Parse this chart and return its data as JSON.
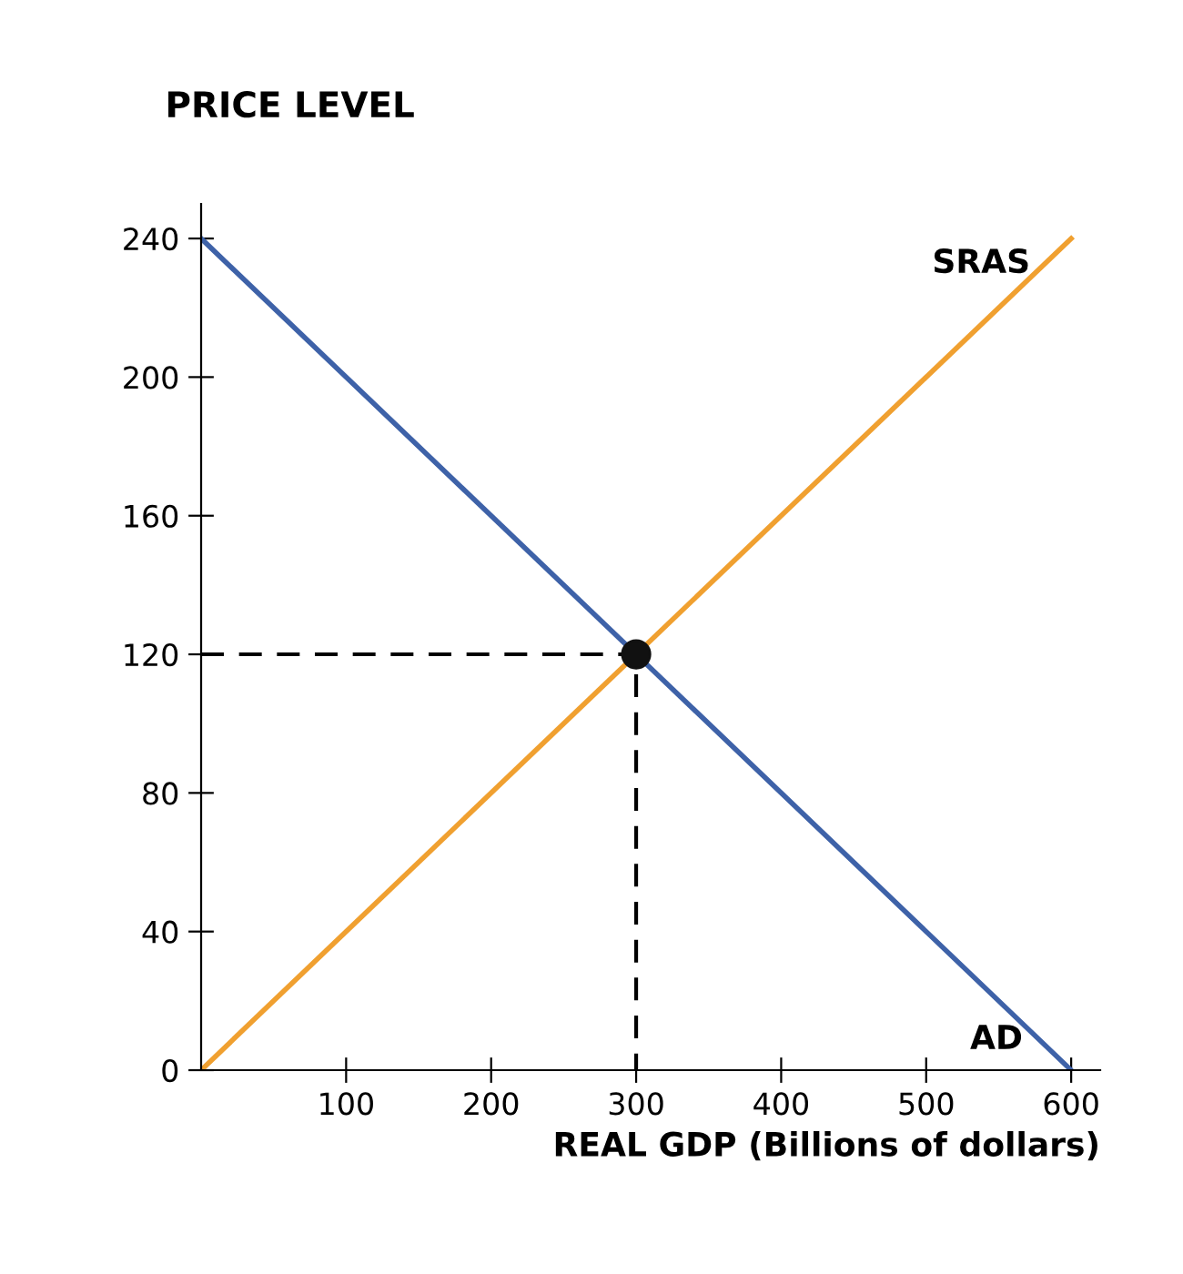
{
  "chart_data": {
    "type": "line",
    "ylabel": "PRICE LEVEL",
    "xlabel": "REAL GDP (Billions of dollars)",
    "xlim": [
      0,
      620
    ],
    "ylim": [
      0,
      250
    ],
    "xticks": [
      100,
      200,
      300,
      400,
      500,
      600
    ],
    "yticks": [
      0,
      40,
      80,
      120,
      160,
      200,
      240
    ],
    "grid": false,
    "legend": false,
    "marker": "none",
    "series": [
      {
        "name": "SRAS",
        "color": "#f0a030",
        "x": [
          0,
          600
        ],
        "values": [
          0,
          240
        ]
      },
      {
        "name": "AD",
        "color": "#3e62a8",
        "x": [
          0,
          600
        ],
        "values": [
          240,
          0
        ]
      },
      {
        "color": "#000000",
        "x": [
          0,
          300,
          300
        ],
        "values": [
          120,
          120,
          0
        ],
        "line_style": "dashed"
      },
      {
        "type": "scatter",
        "color": "#111111",
        "x": [
          300
        ],
        "values": [
          120
        ],
        "marker": "circle"
      }
    ]
  }
}
